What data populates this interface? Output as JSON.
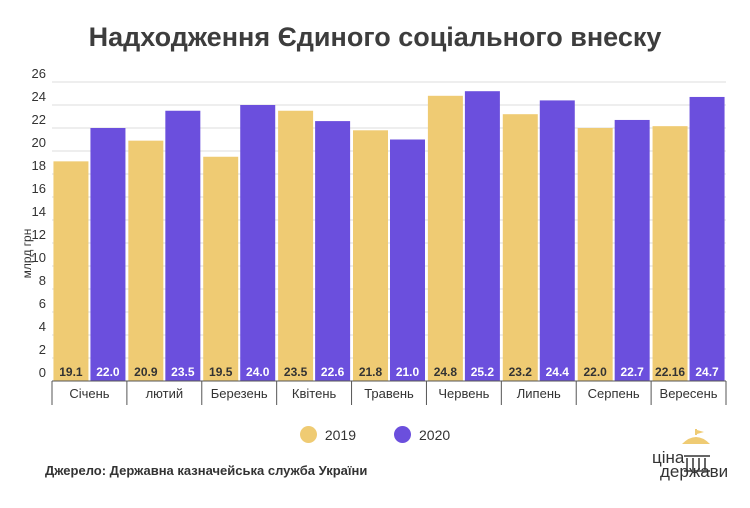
{
  "chart_data": {
    "type": "bar",
    "title": "Надходження Єдиного соціального внеску",
    "ylabel": "млрд грн",
    "ylim": [
      0,
      26
    ],
    "yticks": [
      0,
      2,
      4,
      6,
      8,
      10,
      12,
      14,
      16,
      18,
      20,
      22,
      24,
      26
    ],
    "grid": true,
    "legend_position": "bottom",
    "categories": [
      "Січень",
      "лютий",
      "Березень",
      "Квітень",
      "Травень",
      "Червень",
      "Липень",
      "Серпень",
      "Вересень"
    ],
    "series": [
      {
        "name": "2019",
        "color": "#EFCB73",
        "values": [
          19.1,
          20.9,
          19.5,
          23.5,
          21.8,
          24.8,
          23.2,
          22.0,
          22.16
        ],
        "labels": [
          "19.1",
          "20.9",
          "19.5",
          "23.5",
          "21.8",
          "24.8",
          "23.2",
          "22.0",
          "22.16"
        ]
      },
      {
        "name": "2020",
        "color": "#6B4FDD",
        "values": [
          22.0,
          23.5,
          24.0,
          22.6,
          21.0,
          25.2,
          24.4,
          22.7,
          24.7
        ],
        "labels": [
          "22.0",
          "23.5",
          "24.0",
          "22.6",
          "21.0",
          "25.2",
          "24.4",
          "22.7",
          "24.7"
        ]
      }
    ]
  },
  "source": "Джерело: Державна казначейська служба України",
  "logo": {
    "line1": "ціна",
    "line2": "держави",
    "icon": "parliament-dome-icon"
  }
}
